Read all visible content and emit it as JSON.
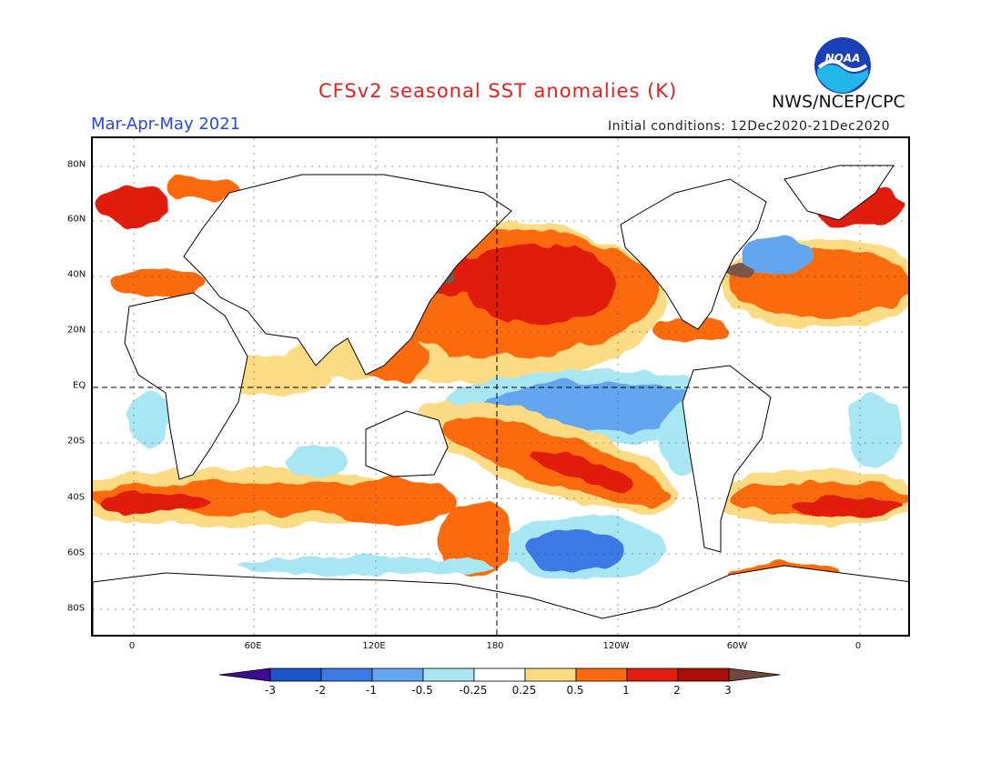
{
  "header": {
    "title": "CFSv2 seasonal SST anomalies (K)",
    "period": "Mar-Apr-May 2021",
    "initial_conditions": "Initial conditions: 12Dec2020-21Dec2020",
    "agency": "NWS/NCEP/CPC",
    "logo_text": "NOAA"
  },
  "map": {
    "lat_labels": [
      "80N",
      "60N",
      "40N",
      "20N",
      "EQ",
      "20S",
      "40S",
      "60S",
      "80S"
    ],
    "lon_labels": [
      "0",
      "60E",
      "120E",
      "180",
      "120W",
      "60W",
      "0"
    ],
    "dashed_lines": [
      "EQ",
      "180"
    ]
  },
  "colorbar": {
    "labels": [
      "-3",
      "-2",
      "-1",
      "-0.5",
      "-0.25",
      "0.25",
      "0.5",
      "1",
      "2",
      "3"
    ],
    "colors": [
      "#3b0c8f",
      "#1a55c9",
      "#3b79e4",
      "#63a6ef",
      "#a8e6f4",
      "#ffffff",
      "#fbdc84",
      "#fb6a10",
      "#e11d0d",
      "#a90e0a",
      "#6e4a3c"
    ]
  }
}
